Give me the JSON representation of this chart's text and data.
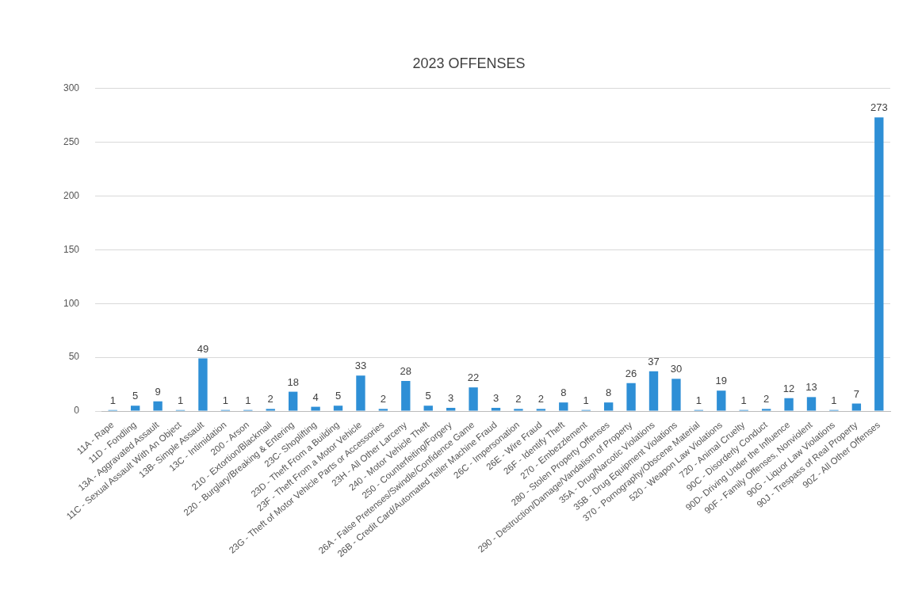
{
  "chart_data": {
    "type": "bar",
    "title": "2023 OFFENSES",
    "categories": [
      "11A - Rape",
      "11D - Fondling",
      "13A - Aggravated Assault",
      "11C - Sexual Assault With An Object",
      "13B- Simple Assault",
      "13C - Intimidation",
      "200 - Arson",
      "210 - Extortion/Blackmail",
      "220 - Burglary/Breaking & Entering",
      "23C- Shoplifting",
      "23D - Theft From a Building",
      "23F - Theft From a Motor Vehicle",
      "23G - Theft of Motor Vehicle Parts or Accessories",
      "23H - All Other Larceny",
      "240 - Motor Vehicle Theft",
      "250 - Counterfeiting/Forgery",
      "26A - False Pretenses/Swindle/Confidence Game",
      "26B - Credit Card/Automated Teller Machine Fraud",
      "26C - Impersonation",
      "26E - Wire Fraud",
      "26F - Identify Theft",
      "270 - Embezzlement",
      "280 - Stolen Property Offenses",
      "290 - Destruction/Damage/Vandalism of Property",
      "35A - Drug/Narcotic Violations",
      "35B - Drug Equipment Violations",
      "370 - Pornography/Obscene Material",
      "520 - Weapon Law Violations",
      "720 - Animal Cruelty",
      "90C - Disorderly Conduct",
      "90D- Driving Under the Influence",
      "90F - Family Offenses, Nonviolent",
      "90G - Liquor Law Violations",
      "90J - Trespass of Real Property",
      "90Z - All Other Offenses"
    ],
    "values": [
      1,
      5,
      9,
      1,
      49,
      1,
      1,
      2,
      18,
      4,
      5,
      33,
      2,
      28,
      5,
      3,
      22,
      3,
      2,
      2,
      8,
      1,
      8,
      26,
      37,
      30,
      1,
      19,
      1,
      2,
      12,
      13,
      1,
      7,
      273
    ],
    "color": "#2e8fd6",
    "ylim": [
      0,
      300
    ],
    "yticks": [
      0,
      50,
      100,
      150,
      200,
      250,
      300
    ],
    "grid": "y",
    "data_labels": true
  }
}
